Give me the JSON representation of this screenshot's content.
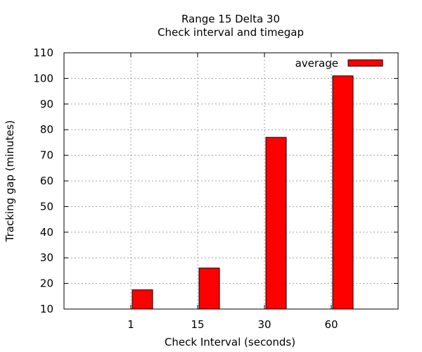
{
  "chart_data": {
    "type": "bar",
    "title": "Range 15 Delta 30",
    "subtitle": "Check interval and timegap",
    "xlabel": "Check Interval (seconds)",
    "ylabel": "Tracking gap (minutes)",
    "categories": [
      "1",
      "15",
      "30",
      "60"
    ],
    "series": [
      {
        "name": "average",
        "values": [
          17.5,
          26,
          77,
          101
        ],
        "color": "#ff0000"
      }
    ],
    "ylim": [
      10,
      110
    ],
    "yticks": [
      10,
      20,
      30,
      40,
      50,
      60,
      70,
      80,
      90,
      100,
      110
    ],
    "grid": true,
    "legend": "top-right"
  }
}
